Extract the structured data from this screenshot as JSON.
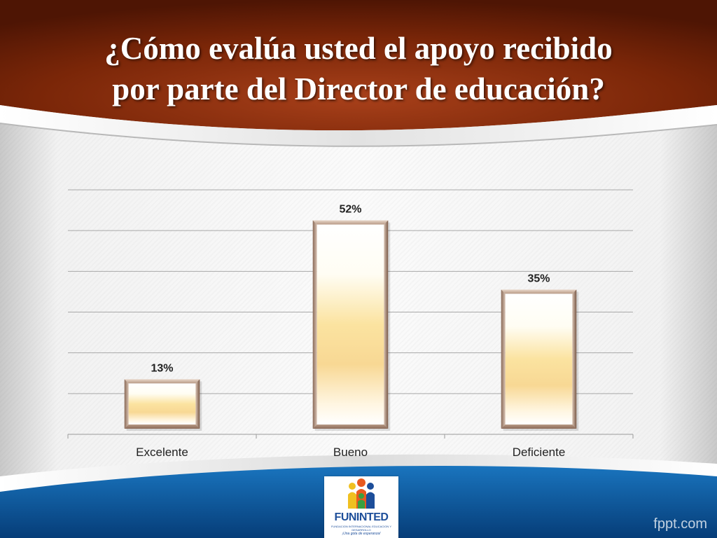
{
  "slide": {
    "title_line1": "¿Cómo evalúa usted el apoyo recibido",
    "title_line2": "por parte del Director de educación?",
    "watermark": "fppt.com",
    "colors": {
      "header": "#7a2608",
      "footer": "#0a5aa0",
      "bar_light": "#fdf1c4",
      "bar_mid": "#f2c86a",
      "bar_frame": "#b48c74"
    }
  },
  "logo": {
    "name": "FUNINTED",
    "subtitle": "FUNDACION INTERNACIONAL EDUCACION Y DESARROLLO",
    "tagline": "¡Una gota de esperanza!"
  },
  "chart_data": {
    "type": "bar",
    "categories": [
      "Excelente",
      "Bueno",
      "Deficiente"
    ],
    "values": [
      13,
      52,
      35
    ],
    "data_labels": [
      "13%",
      "52%",
      "35%"
    ],
    "ylim": [
      0,
      60
    ],
    "gridlines": [
      0,
      10,
      20,
      30,
      40,
      50,
      60
    ],
    "grid": true,
    "legend": "none",
    "title": "",
    "xlabel": "",
    "ylabel": ""
  }
}
